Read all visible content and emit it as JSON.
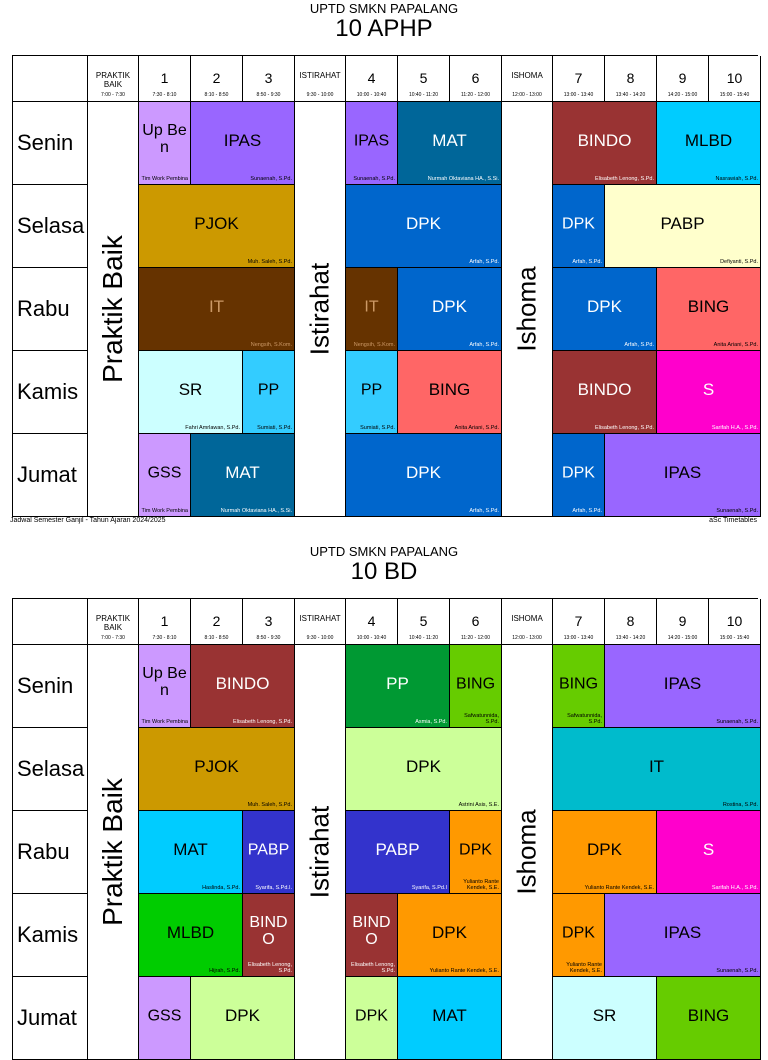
{
  "header_row": {
    "praktik": {
      "label": "PRAKTIK BAIK",
      "time": "7:00 - 7:30"
    },
    "istirahat": {
      "label": "ISTIRAHAT",
      "time": "9:30 - 10:00"
    },
    "ishoma": {
      "label": "ISHOMA",
      "time": "12:00 - 13:00"
    },
    "periods": [
      {
        "num": "1",
        "time": "7:30 - 8:10"
      },
      {
        "num": "2",
        "time": "8:10 - 8:50"
      },
      {
        "num": "3",
        "time": "8:50 - 9:30"
      },
      {
        "num": "4",
        "time": "10:00 - 10:40"
      },
      {
        "num": "5",
        "time": "10:40 - 11:20"
      },
      {
        "num": "6",
        "time": "11:20 - 12:00"
      },
      {
        "num": "7",
        "time": "13:00 - 13:40"
      },
      {
        "num": "8",
        "time": "13:40 - 14:20"
      },
      {
        "num": "9",
        "time": "14:20 - 15:00"
      },
      {
        "num": "10",
        "time": "15:00 - 15:40"
      }
    ]
  },
  "days": [
    "Senin",
    "Selasa",
    "Rabu",
    "Kamis",
    "Jumat"
  ],
  "vertical": {
    "praktik": "Praktik Baik",
    "istirahat": "Istirahat",
    "ishoma": "Ishoma"
  },
  "footer": {
    "left": "Jadwal Semester Ganjil - Tahun Ajaran 2024/2025",
    "right": "aSc Timetables"
  },
  "sheets": [
    {
      "school": "UPTD SMKN PAPALANG",
      "class_name": "10 APHP",
      "lessons": [
        {
          "day": 0,
          "start": 1,
          "span": 1,
          "subject": "Up Ben",
          "teacher": "Tim Work Pembina",
          "color": "#cc99ff"
        },
        {
          "day": 0,
          "start": 2,
          "span": 2,
          "subject": "IPAS",
          "teacher": "Sunaenah, S.Pd.",
          "color": "#9966ff"
        },
        {
          "day": 0,
          "start": 4,
          "span": 1,
          "subject": "IPAS",
          "teacher": "Sunaenah, S.Pd.",
          "color": "#9966ff"
        },
        {
          "day": 0,
          "start": 5,
          "span": 2,
          "subject": "MAT",
          "teacher": "Nurmah Oktaviana HA., S.Si.",
          "color": "#006699"
        },
        {
          "day": 0,
          "start": 7,
          "span": 2,
          "subject": "BINDO",
          "teacher": "Elisabeth Lenong, S.Pd.",
          "color": "#993333"
        },
        {
          "day": 0,
          "start": 9,
          "span": 2,
          "subject": "MLBD",
          "teacher": "Nasrawiah, S.Pd.",
          "color": "#00ccff"
        },
        {
          "day": 1,
          "start": 1,
          "span": 3,
          "subject": "PJOK",
          "teacher": "Muh. Saleh, S.Pd.",
          "color": "#cc9900"
        },
        {
          "day": 1,
          "start": 4,
          "span": 3,
          "subject": "DPK",
          "teacher": "Arfah, S.Pd.",
          "color": "#0066cc"
        },
        {
          "day": 1,
          "start": 7,
          "span": 1,
          "subject": "DPK",
          "teacher": "Arfah, S.Pd.",
          "color": "#0066cc"
        },
        {
          "day": 1,
          "start": 8,
          "span": 3,
          "subject": "PABP",
          "teacher": "Defiyanti, S.Pd.",
          "color": "#ffffcc"
        },
        {
          "day": 2,
          "start": 1,
          "span": 3,
          "subject": "IT",
          "teacher": "Nengsih, S.Kom.",
          "color": "#663300"
        },
        {
          "day": 2,
          "start": 4,
          "span": 1,
          "subject": "IT",
          "teacher": "Nengsih, S.Kom.",
          "color": "#663300"
        },
        {
          "day": 2,
          "start": 5,
          "span": 2,
          "subject": "DPK",
          "teacher": "Arfah, S.Pd.",
          "color": "#0066cc"
        },
        {
          "day": 2,
          "start": 7,
          "span": 2,
          "subject": "DPK",
          "teacher": "Arfah, S.Pd.",
          "color": "#0066cc"
        },
        {
          "day": 2,
          "start": 9,
          "span": 2,
          "subject": "BING",
          "teacher": "Anita Ariani, S.Pd.",
          "color": "#ff6666"
        },
        {
          "day": 3,
          "start": 1,
          "span": 2,
          "subject": "SR",
          "teacher": "Fahri Amrlawan, S.Pd.",
          "color": "#ccffff"
        },
        {
          "day": 3,
          "start": 3,
          "span": 1,
          "subject": "PP",
          "teacher": "Sumiati, S.Pd.",
          "color": "#33ccff"
        },
        {
          "day": 3,
          "start": 4,
          "span": 1,
          "subject": "PP",
          "teacher": "Sumiati, S.Pd.",
          "color": "#33ccff"
        },
        {
          "day": 3,
          "start": 5,
          "span": 2,
          "subject": "BING",
          "teacher": "Anita Ariani, S.Pd.",
          "color": "#ff6666"
        },
        {
          "day": 3,
          "start": 7,
          "span": 2,
          "subject": "BINDO",
          "teacher": "Elisabeth Lenong, S.Pd.",
          "color": "#993333"
        },
        {
          "day": 3,
          "start": 9,
          "span": 2,
          "subject": "S",
          "teacher": "Sarifah H.A., S.Pd.",
          "color": "#ff00cc"
        },
        {
          "day": 4,
          "start": 1,
          "span": 1,
          "subject": "GSS",
          "teacher": "Tim Work Pembina",
          "color": "#cc99ff"
        },
        {
          "day": 4,
          "start": 2,
          "span": 2,
          "subject": "MAT",
          "teacher": "Nurmah Oktaviana HA., S.Si.",
          "color": "#006699"
        },
        {
          "day": 4,
          "start": 4,
          "span": 3,
          "subject": "DPK",
          "teacher": "Arfah, S.Pd.",
          "color": "#0066cc"
        },
        {
          "day": 4,
          "start": 7,
          "span": 1,
          "subject": "DPK",
          "teacher": "Arfah, S.Pd.",
          "color": "#0066cc"
        },
        {
          "day": 4,
          "start": 8,
          "span": 3,
          "subject": "IPAS",
          "teacher": "Sunaenah, S.Pd.",
          "color": "#9966ff"
        }
      ]
    },
    {
      "school": "UPTD SMKN PAPALANG",
      "class_name": "10 BD",
      "lessons": [
        {
          "day": 0,
          "start": 1,
          "span": 1,
          "subject": "Up Ben",
          "teacher": "Tim Work Pembina",
          "color": "#cc99ff"
        },
        {
          "day": 0,
          "start": 2,
          "span": 2,
          "subject": "BINDO",
          "teacher": "Elisabeth Lenong, S.Pd.",
          "color": "#993333"
        },
        {
          "day": 0,
          "start": 4,
          "span": 2,
          "subject": "PP",
          "teacher": "Asmia, S.Pd.",
          "color": "#009933"
        },
        {
          "day": 0,
          "start": 6,
          "span": 1,
          "subject": "BING",
          "teacher": "Safwatunnida, S.Pd.",
          "color": "#66cc00"
        },
        {
          "day": 0,
          "start": 7,
          "span": 1,
          "subject": "BING",
          "teacher": "Safwatunnida, S.Pd.",
          "color": "#66cc00"
        },
        {
          "day": 0,
          "start": 8,
          "span": 3,
          "subject": "IPAS",
          "teacher": "Sunaenah, S.Pd.",
          "color": "#9966ff"
        },
        {
          "day": 1,
          "start": 1,
          "span": 3,
          "subject": "PJOK",
          "teacher": "Muh. Saleh, S.Pd.",
          "color": "#cc9900"
        },
        {
          "day": 1,
          "start": 4,
          "span": 3,
          "subject": "DPK",
          "teacher": "Astrini Asis, S.E.",
          "color": "#ccff99"
        },
        {
          "day": 1,
          "start": 7,
          "span": 4,
          "subject": "IT",
          "teacher": "Rostina, S.Pd.",
          "color": "#00bbcc"
        },
        {
          "day": 2,
          "start": 1,
          "span": 2,
          "subject": "MAT",
          "teacher": "Haslinda, S.Pd.",
          "color": "#00ccff"
        },
        {
          "day": 2,
          "start": 3,
          "span": 1,
          "subject": "PABP",
          "teacher": "Syarifa, S.Pd.I.",
          "color": "#3333cc"
        },
        {
          "day": 2,
          "start": 4,
          "span": 2,
          "subject": "PABP",
          "teacher": "Syarifa, S.Pd.I",
          "color": "#3333cc"
        },
        {
          "day": 2,
          "start": 6,
          "span": 1,
          "subject": "DPK",
          "teacher": "Yulianto Rante Kendek, S.E.",
          "color": "#ff9900"
        },
        {
          "day": 2,
          "start": 7,
          "span": 2,
          "subject": "DPK",
          "teacher": "Yulianto Rante Kendek, S.E.",
          "color": "#ff9900"
        },
        {
          "day": 2,
          "start": 9,
          "span": 2,
          "subject": "S",
          "teacher": "Sarifah H.A., S.Pd.",
          "color": "#ff00cc"
        },
        {
          "day": 3,
          "start": 1,
          "span": 2,
          "subject": "MLBD",
          "teacher": "Hijrah, S.Pd.",
          "color": "#00cc00"
        },
        {
          "day": 3,
          "start": 3,
          "span": 1,
          "subject": "BINDO",
          "teacher": "Elisabeth Lenong, S.Pd.",
          "color": "#993333"
        },
        {
          "day": 3,
          "start": 4,
          "span": 1,
          "subject": "BINDO",
          "teacher": "Elisabeth Lenong, S.Pd.",
          "color": "#993333"
        },
        {
          "day": 3,
          "start": 5,
          "span": 2,
          "subject": "DPK",
          "teacher": "Yulianto Rante Kendek, S.E.",
          "color": "#ff9900"
        },
        {
          "day": 3,
          "start": 7,
          "span": 1,
          "subject": "DPK",
          "teacher": "Yulianto Rante Kendek, S.E.",
          "color": "#ff9900"
        },
        {
          "day": 3,
          "start": 8,
          "span": 3,
          "subject": "IPAS",
          "teacher": "Sunaenah, S.Pd.",
          "color": "#9966ff"
        },
        {
          "day": 4,
          "start": 1,
          "span": 1,
          "subject": "GSS",
          "teacher": "",
          "color": "#cc99ff"
        },
        {
          "day": 4,
          "start": 2,
          "span": 2,
          "subject": "DPK",
          "teacher": "",
          "color": "#ccff99"
        },
        {
          "day": 4,
          "start": 4,
          "span": 1,
          "subject": "DPK",
          "teacher": "",
          "color": "#ccff99"
        },
        {
          "day": 4,
          "start": 5,
          "span": 2,
          "subject": "MAT",
          "teacher": "",
          "color": "#00ccff"
        },
        {
          "day": 4,
          "start": 7,
          "span": 2,
          "subject": "SR",
          "teacher": "",
          "color": "#ccffff"
        },
        {
          "day": 4,
          "start": 9,
          "span": 2,
          "subject": "BING",
          "teacher": "",
          "color": "#66cc00"
        }
      ]
    }
  ]
}
